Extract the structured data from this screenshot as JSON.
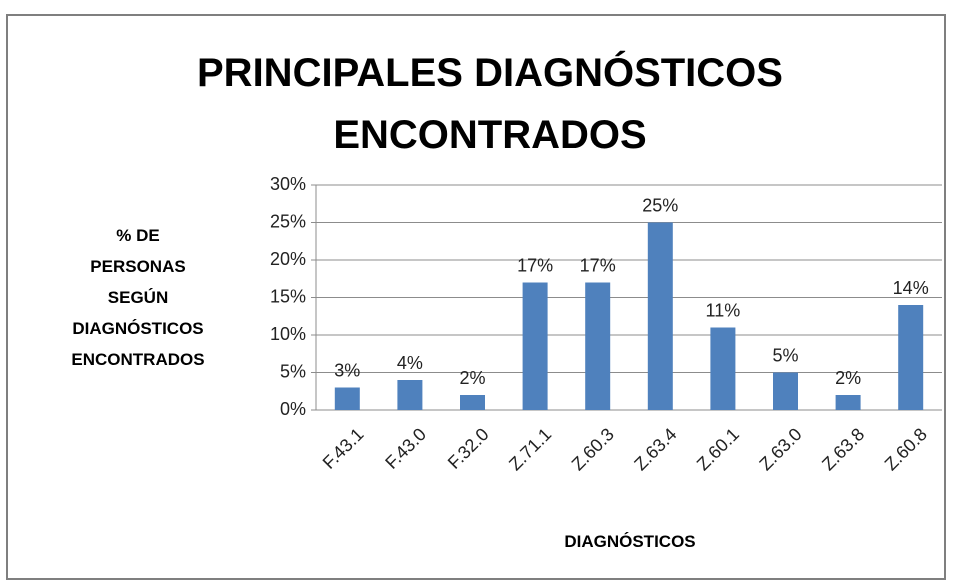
{
  "chart_data": {
    "type": "bar",
    "title": "PRINCIPALES DIAGNÓSTICOS ENCONTRADOS",
    "y_label": "% DE PERSONAS SEGÚN DIAGNÓSTICOS ENCONTRADOS",
    "x_label": "DIAGNÓSTICOS",
    "categories": [
      "F.43.1",
      "F.43.0",
      "F.32.0",
      "Z.71.1",
      "Z.60.3",
      "Z.63.4",
      "Z.60.1",
      "Z.63.0",
      "Z.63.8",
      "Z.60.8"
    ],
    "values": [
      3,
      4,
      2,
      17,
      17,
      25,
      11,
      5,
      2,
      14
    ],
    "value_labels": [
      "3%",
      "4%",
      "2%",
      "17%",
      "17%",
      "25%",
      "11%",
      "5%",
      "2%",
      "14%"
    ],
    "color": "#4f81bd",
    "ylim": [
      0,
      30
    ],
    "yticks": [
      {
        "value": 0,
        "label": "0%"
      },
      {
        "value": 5,
        "label": "5%"
      },
      {
        "value": 10,
        "label": "10%"
      },
      {
        "value": 15,
        "label": "15%"
      },
      {
        "value": 20,
        "label": "20%"
      },
      {
        "value": 25,
        "label": "25%"
      },
      {
        "value": 30,
        "label": "30%"
      }
    ],
    "grid": true
  }
}
